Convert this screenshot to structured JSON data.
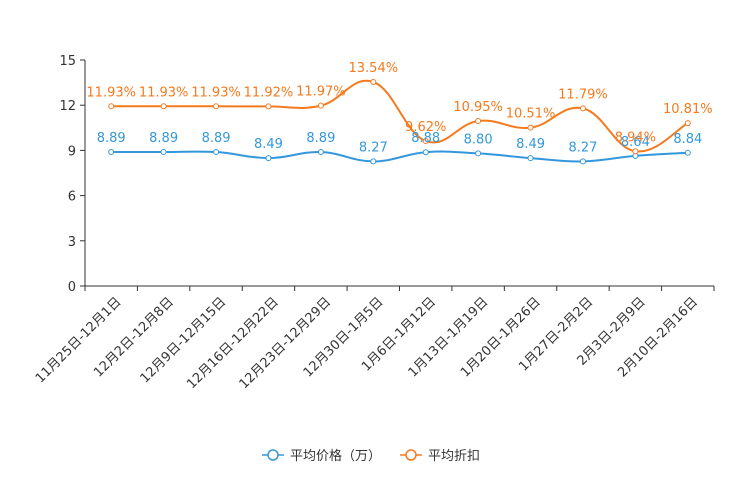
{
  "chart_data": {
    "type": "line",
    "title": "",
    "xlabel": "",
    "ylabel": "",
    "ylim": [
      0,
      15
    ],
    "yticks": [
      0,
      3,
      6,
      9,
      12,
      15
    ],
    "categories": [
      "11月25日-12月1日",
      "12月2日-12月8日",
      "12月9日-12月15日",
      "12月16日-12月22日",
      "12月23日-12月29日",
      "12月30日-1月5日",
      "1月6日-1月12日",
      "1月13日-1月19日",
      "1月20日-1月26日",
      "1月27日-2月2日",
      "2月3日-2月9日",
      "2月10日-2月16日"
    ],
    "series": [
      {
        "name": "平均价格（万）",
        "color": "#3398DB",
        "values": [
          8.89,
          8.89,
          8.89,
          8.49,
          8.89,
          8.27,
          8.88,
          8.8,
          8.49,
          8.27,
          8.64,
          8.84
        ],
        "labels": [
          "8.89",
          "8.89",
          "8.89",
          "8.49",
          "8.89",
          "8.27",
          "8.88",
          "8.80",
          "8.49",
          "8.27",
          "8.64",
          "8.84"
        ]
      },
      {
        "name": "平均折扣",
        "color": "#F57A1E",
        "values": [
          11.93,
          11.93,
          11.93,
          11.92,
          11.97,
          13.54,
          9.62,
          10.95,
          10.51,
          11.79,
          8.94,
          10.81
        ],
        "labels": [
          "11.93%",
          "11.93%",
          "11.93%",
          "11.92%",
          "11.97%",
          "13.54%",
          "9.62%",
          "10.95%",
          "10.51%",
          "11.79%",
          "8.94%",
          "10.81%"
        ]
      }
    ],
    "legend_position": "bottom-center",
    "grid": false
  }
}
